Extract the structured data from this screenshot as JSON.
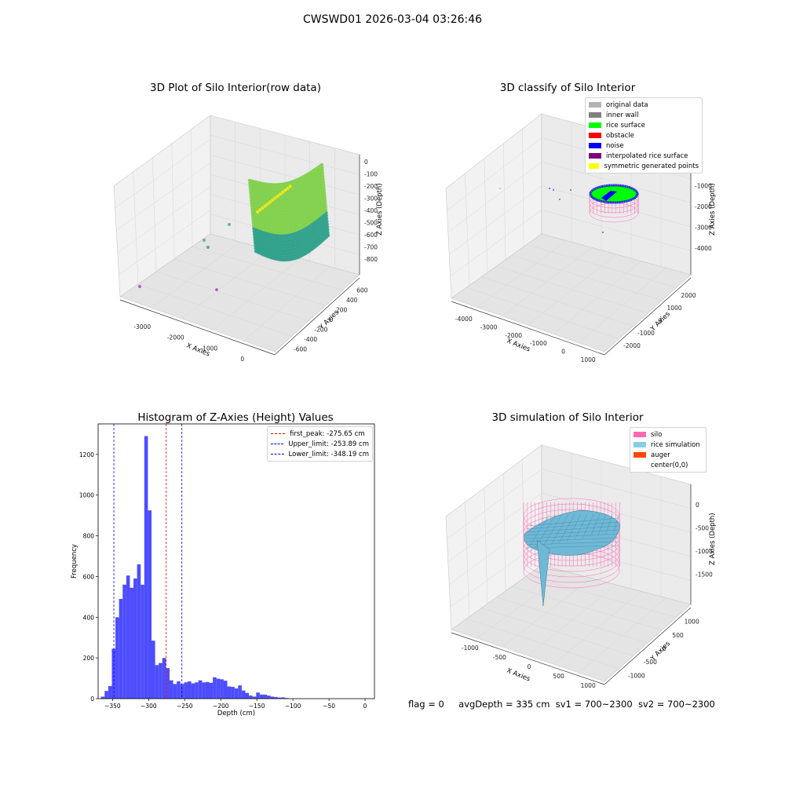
{
  "figure_title": "CWSWD01 2026-03-04 03:26:46",
  "footer": {
    "flag": "flag = 0",
    "avg_depth": "avgDepth = 335 cm",
    "sv1": "sv1 = 700~2300",
    "sv2": "sv2 = 700~2300"
  },
  "chart_data": [
    {
      "type": "scatter",
      "title": "3D Plot of Silo Interior(row data)",
      "xlabel": "X Axies",
      "ylabel": "Y Axies",
      "zlabel": "Z Axies (Depth)",
      "x_ticks": [
        "-3000",
        "-2000",
        "-1000",
        "0"
      ],
      "y_ticks": [
        "600",
        "400",
        "200",
        "0",
        "-200",
        "-400",
        "-600"
      ],
      "z_ticks": [
        "0",
        "-100",
        "-200",
        "-300",
        "-400",
        "-500",
        "-600",
        "-700",
        "-800"
      ],
      "colors": {
        "surface_low": "#2ca08a",
        "surface_mid": "#7fd04a",
        "surface_high": "#e8e520",
        "outlier": "#9b59b6"
      }
    },
    {
      "type": "scatter",
      "title": "3D classify of Silo Interior",
      "xlabel": "X Axies",
      "ylabel": "Y Axies",
      "zlabel": "Z Axies (Depth)",
      "x_ticks": [
        "-4000",
        "-3000",
        "-2000",
        "-1000",
        "0",
        "1000"
      ],
      "y_ticks": [
        "2000",
        "1000",
        "0",
        "-1000",
        "-2000"
      ],
      "z_ticks": [
        "0",
        "-1000",
        "-2000",
        "-3000",
        "-4000"
      ],
      "legend": [
        {
          "label": "original data",
          "color": "#b3b3b3"
        },
        {
          "label": "inner wall",
          "color": "#808080"
        },
        {
          "label": "rice surface",
          "color": "#00ff00"
        },
        {
          "label": "obstacle",
          "color": "#ff0000"
        },
        {
          "label": "noise",
          "color": "#0000ff"
        },
        {
          "label": "interpolated rice surface",
          "color": "#800080"
        },
        {
          "label": "symmetric generated points",
          "color": "#ffff00"
        }
      ]
    },
    {
      "type": "bar",
      "title": "Histogram of Z-Axies (Height) Values",
      "xlabel": "Depth (cm)",
      "ylabel": "Frequency",
      "xlim": [
        -370,
        13
      ],
      "ylim": [
        0,
        1350
      ],
      "x_ticks": [
        -350,
        -300,
        -250,
        -200,
        -150,
        -100,
        -50,
        0
      ],
      "y_ticks": [
        0,
        200,
        400,
        600,
        800,
        1000,
        1200
      ],
      "bar_color": "#4d4dff",
      "bin_width": 5,
      "bin_start": -366,
      "values": [
        10,
        38,
        62,
        245,
        400,
        490,
        560,
        605,
        545,
        590,
        660,
        560,
        1290,
        925,
        285,
        165,
        175,
        200,
        150,
        90,
        72,
        85,
        72,
        80,
        85,
        75,
        80,
        90,
        80,
        82,
        78,
        105,
        98,
        95,
        88,
        60,
        58,
        50,
        65,
        40,
        28,
        15,
        10,
        30,
        20,
        20,
        15,
        10,
        8,
        5,
        6,
        3
      ],
      "reference_lines": [
        {
          "label": "first_peak: -275.65 cm",
          "value": -275.65,
          "color": "#ff0000"
        },
        {
          "label": "Upper_limit: -253.89 cm",
          "value": -253.89,
          "color": "#0000ff"
        },
        {
          "label": "Lower_limit: -348.19 cm",
          "value": -348.19,
          "color": "#0000ff"
        }
      ]
    },
    {
      "type": "scatter",
      "title": "3D simulation of Silo Interior",
      "xlabel": "X Axies",
      "ylabel": "Y Axies",
      "zlabel": "Z Axies (Depth)",
      "x_ticks": [
        "-1000",
        "-500",
        "0",
        "500",
        "1000"
      ],
      "y_ticks": [
        "1000",
        "500",
        "0",
        "-500",
        "-1000"
      ],
      "z_ticks": [
        "0",
        "-500",
        "-1000",
        "-1500"
      ],
      "legend": [
        {
          "label": "silo",
          "color": "#ff69b4"
        },
        {
          "label": "rice simulation",
          "color": "#87ceeb"
        },
        {
          "label": "auger",
          "color": "#ff4500"
        },
        {
          "label": "center(0,0)",
          "color": ""
        }
      ]
    }
  ]
}
